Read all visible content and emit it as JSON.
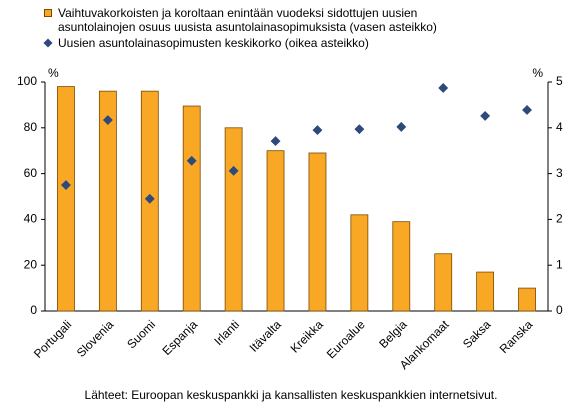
{
  "chart_data": {
    "type": "bar",
    "categories": [
      "Portugali",
      "Slovenia",
      "Suomi",
      "Espanja",
      "Irlanti",
      "Itävalta",
      "Kreikka",
      "Euroalue",
      "Belgia",
      "Alankomaat",
      "Saksa",
      "Ranska"
    ],
    "series": [
      {
        "name": "Vaihtuvakorkoisten ja koroltaan enintään vuodeksi sidottujen uusien asuntolainojen osuus uusista asuntolainasopimuksista (vasen asteikko)",
        "type": "bar",
        "color": "#f9a825",
        "values": [
          98,
          96,
          96,
          89.5,
          80,
          70,
          69,
          42,
          39,
          25,
          17,
          10
        ]
      },
      {
        "name": "Uusien asuntolainasopimusten keskikorko (oikea asteikko)",
        "type": "scatter",
        "axis": "y2",
        "color": "#2e4a7a",
        "values": [
          2.75,
          4.17,
          2.45,
          3.28,
          3.06,
          3.71,
          3.95,
          3.97,
          4.02,
          4.87,
          4.26,
          4.39
        ]
      }
    ],
    "ylabel": "%",
    "y2label": "%",
    "ylim": [
      0,
      100
    ],
    "yticks": [
      0,
      20,
      40,
      60,
      80,
      100
    ],
    "y2lim": [
      0,
      5
    ],
    "y2ticks": [
      0,
      1,
      2,
      3,
      4,
      5
    ],
    "grid": false,
    "source": "Lähteet: Euroopan keskuspankki ja kansallisten keskuspankkien internetsivut."
  }
}
